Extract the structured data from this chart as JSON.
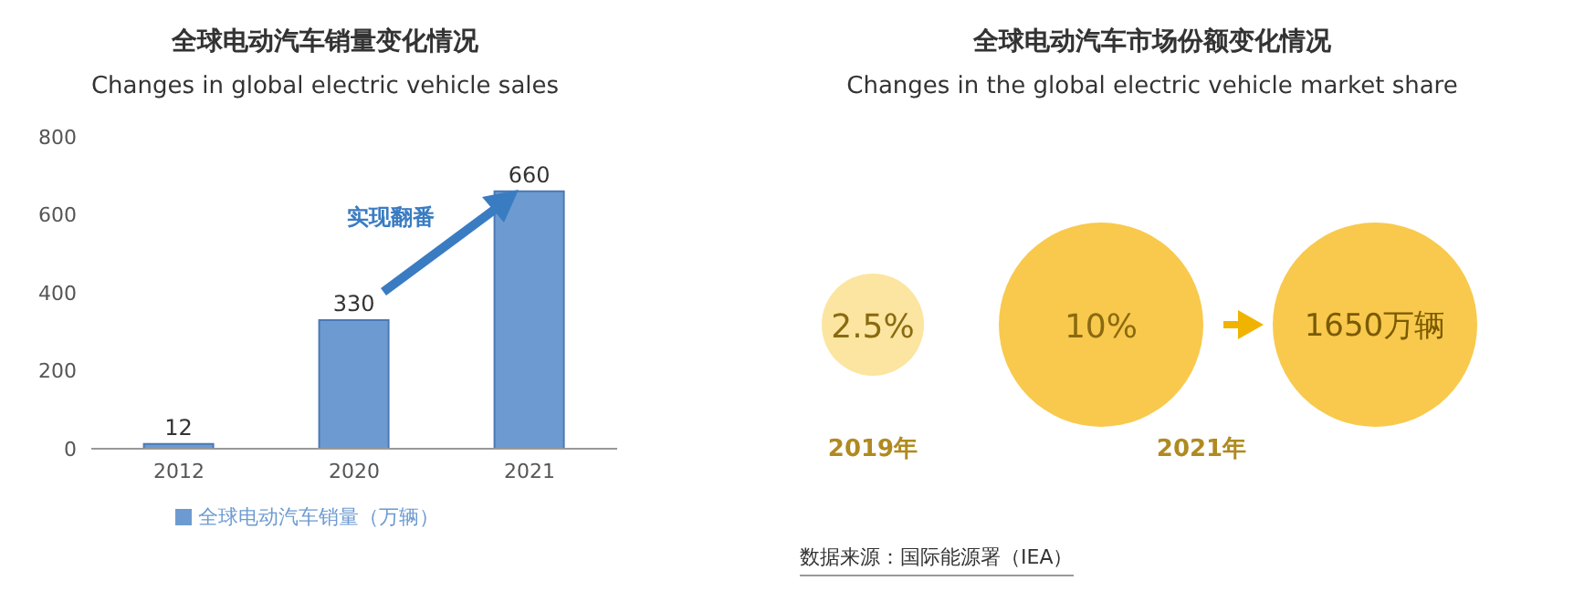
{
  "chart_data": [
    {
      "type": "bar",
      "title": "全球电动汽车销量变化情况",
      "subtitle": "Changes in global electric vehicle sales",
      "categories": [
        "2012",
        "2020",
        "2021"
      ],
      "series": [
        {
          "name": "全球电动汽车销量（万辆）",
          "color": "#6d9bd1",
          "values": [
            12,
            330,
            660
          ]
        }
      ],
      "ylim": [
        0,
        800
      ],
      "yticks": [
        0,
        200,
        400,
        600,
        800
      ],
      "data_labels": true,
      "legend": "bottom",
      "annotations": [
        "实现翻番"
      ]
    },
    {
      "type": "other",
      "title": "全球电动汽车市场份额变化情况",
      "subtitle": "Changes in the global electric vehicle market share",
      "categories": [
        "2019年",
        "2021年"
      ],
      "values": [
        2.5,
        10
      ],
      "value_labels": [
        "2.5%",
        "10%"
      ],
      "colors": [
        "#fbe5a0",
        "#f8c94c"
      ],
      "annotations": [
        "1650万辆",
        "数据来源：国际能源署（IEA）"
      ]
    }
  ]
}
